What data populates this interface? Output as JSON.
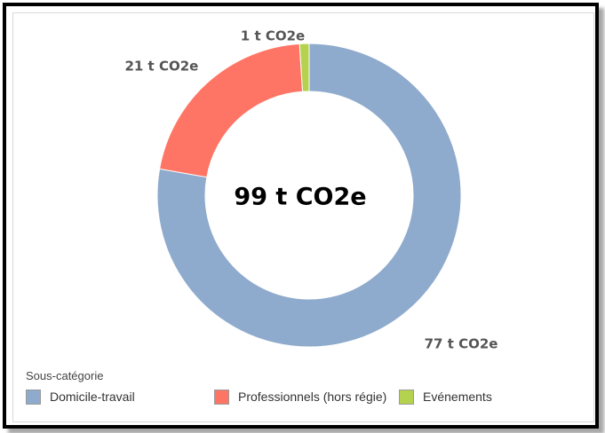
{
  "chart_data": {
    "type": "pie",
    "donut": true,
    "center_label": "99 t CO2e",
    "categories": [
      "Domicile-travail",
      "Professionnels (hors régie)",
      "Evénements"
    ],
    "values": [
      77,
      21,
      1
    ],
    "value_labels": [
      "77 t CO2e",
      "21 t CO2e",
      "1 t CO2e"
    ],
    "colors": [
      "#8eaacc",
      "#ff7565",
      "#b5d24e"
    ],
    "legend_title": "Sous-catégorie",
    "legend_position": "bottom-left",
    "title": "",
    "grid": false
  }
}
